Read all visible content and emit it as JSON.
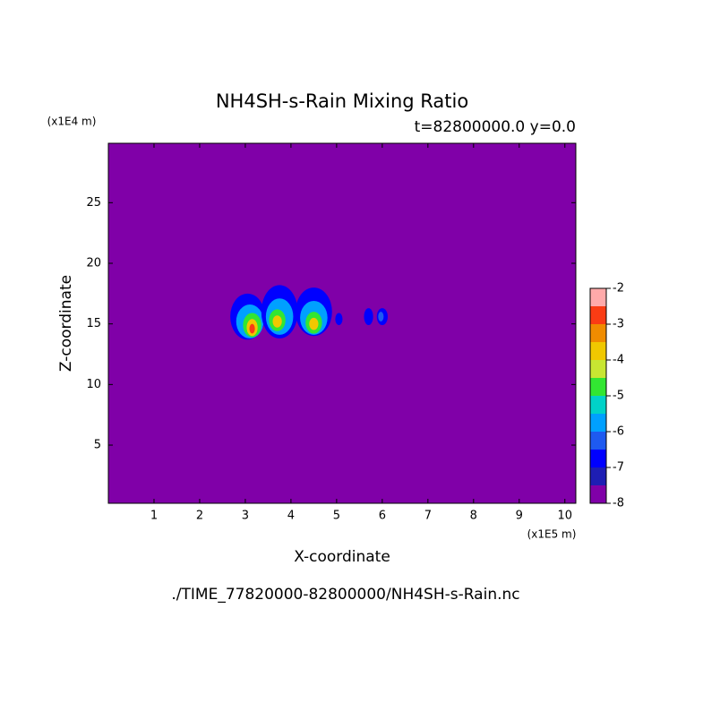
{
  "chart_data": {
    "type": "contour",
    "title": "NH4SH-s-Rain Mixing Ratio",
    "subtitle": "t=82800000.0 y=0.0",
    "x_label": "X-coordinate",
    "y_label": "Z-coordinate",
    "x_unit": "(x1E5 m)",
    "y_unit": "(x1E4 m)",
    "footer": "./TIME_77820000-82800000/NH4SH-s-Rain.nc",
    "xlim": [
      0,
      10.24
    ],
    "xticks": [
      1,
      2,
      3,
      4,
      5,
      6,
      7,
      8,
      9,
      10
    ],
    "ylim": [
      0.2,
      29.9
    ],
    "yticks": [
      5,
      10,
      15,
      20,
      25
    ],
    "background_level": -8,
    "colorbar_levels": [
      -8,
      -7.5,
      -7,
      -6.5,
      -6,
      -5.5,
      -5,
      -4.5,
      -4,
      -3.5,
      -3,
      -2.5,
      -2
    ],
    "colorbar_colors": [
      "#8000a8",
      "#1e1eb4",
      "#0000ff",
      "#1e5af0",
      "#00a0ff",
      "#00d2c8",
      "#32e632",
      "#c8e632",
      "#f0c800",
      "#f08c00",
      "#fa3c14",
      "#f0141e"
    ],
    "colorbar_top_color": "#ffaaaa",
    "colorbar_ticks": [
      -8,
      -7,
      -6,
      -5,
      -4,
      -3,
      -2
    ],
    "features": [
      {
        "x": 3.05,
        "z": 15.6,
        "rx": 0.38,
        "rz": 1.9,
        "level": -7
      },
      {
        "x": 3.1,
        "z": 15.2,
        "rx": 0.3,
        "rz": 1.4,
        "level": -6
      },
      {
        "x": 3.15,
        "z": 14.9,
        "rx": 0.2,
        "rz": 1.0,
        "level": -5
      },
      {
        "x": 3.15,
        "z": 14.7,
        "rx": 0.12,
        "rz": 0.7,
        "level": -4
      },
      {
        "x": 3.15,
        "z": 14.6,
        "rx": 0.06,
        "rz": 0.4,
        "level": -3
      },
      {
        "x": 3.75,
        "z": 16.0,
        "rx": 0.4,
        "rz": 2.2,
        "level": -7
      },
      {
        "x": 3.75,
        "z": 15.6,
        "rx": 0.3,
        "rz": 1.5,
        "level": -6
      },
      {
        "x": 3.7,
        "z": 15.3,
        "rx": 0.18,
        "rz": 0.9,
        "level": -5
      },
      {
        "x": 3.7,
        "z": 15.2,
        "rx": 0.1,
        "rz": 0.5,
        "level": -4
      },
      {
        "x": 4.5,
        "z": 16.0,
        "rx": 0.4,
        "rz": 2.0,
        "level": -7
      },
      {
        "x": 4.5,
        "z": 15.5,
        "rx": 0.3,
        "rz": 1.4,
        "level": -6
      },
      {
        "x": 4.5,
        "z": 15.1,
        "rx": 0.18,
        "rz": 0.9,
        "level": -5
      },
      {
        "x": 4.5,
        "z": 15.0,
        "rx": 0.1,
        "rz": 0.5,
        "level": -4
      },
      {
        "x": 5.05,
        "z": 15.4,
        "rx": 0.08,
        "rz": 0.5,
        "level": -7
      },
      {
        "x": 5.7,
        "z": 15.6,
        "rx": 0.1,
        "rz": 0.7,
        "level": -7
      },
      {
        "x": 6.0,
        "z": 15.6,
        "rx": 0.12,
        "rz": 0.7,
        "level": -7
      },
      {
        "x": 5.97,
        "z": 15.6,
        "rx": 0.06,
        "rz": 0.4,
        "level": -6.5
      }
    ]
  }
}
